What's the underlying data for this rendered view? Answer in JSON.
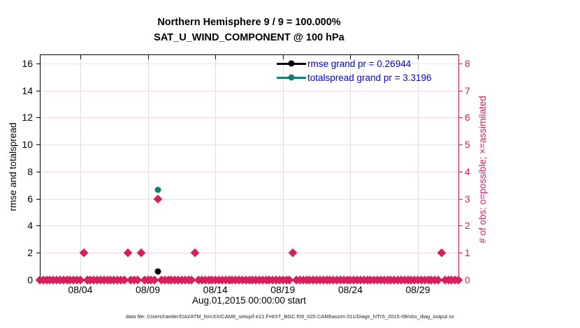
{
  "title_line1": "Northern Hemisphere 9 / 9 = 100.000%",
  "title_line2": "SAT_U_WIND_COMPONENT @ 100 hPa",
  "footer": "data file: /Users/raeder/DAI/ATM_forcXX/CAM6_setup/f.e21.FHIST_BGC.f09_025.CAM6assim.011/Diags_NTrS_2015-08/obs_diag_output.nc",
  "colors": {
    "obs_crimson": "#d81e5b",
    "totalspread_teal": "#0e7e72",
    "rmse_black": "#000000",
    "legend_text_blue": "#0000ee",
    "grid_vertical": "#dcdcdc",
    "grid_horizontal": "#f8d9e3",
    "axis_left": "#000000",
    "axis_right": "#d81e5b"
  },
  "chart_data": {
    "type": "scatter",
    "title": [
      "Northern Hemisphere 9 / 9 = 100.000%",
      "SAT_U_WIND_COMPONENT @ 100 hPa"
    ],
    "xlabel": "Aug.01,2015 00:00:00 start",
    "ylabel_left": "rmse and totalspread",
    "ylabel_right": "# of obs: o=possible; ×=assimilated",
    "x_start_date": "Aug.01,2015 00:00:00",
    "xlim_days_from_start": [
      0,
      31
    ],
    "ylim_left": [
      0,
      16.667
    ],
    "ylim_right": [
      0,
      8.333
    ],
    "x_ticks": [
      {
        "day": 3,
        "label": "08/04"
      },
      {
        "day": 8,
        "label": "08/09"
      },
      {
        "day": 13,
        "label": "08/14"
      },
      {
        "day": 18,
        "label": "08/19"
      },
      {
        "day": 23,
        "label": "08/24"
      },
      {
        "day": 28,
        "label": "08/29"
      }
    ],
    "y_ticks_left": [
      0,
      2,
      4,
      6,
      8,
      10,
      12,
      14,
      16
    ],
    "y_ticks_right": [
      0,
      1,
      2,
      3,
      4,
      5,
      6,
      7,
      8
    ],
    "grid": true,
    "legend_position": "top-right-inside",
    "legend": [
      {
        "series": "rmse",
        "label": "rmse grand pr = 0.26944",
        "color": "#000000"
      },
      {
        "series": "totalspread",
        "label": "totalspread grand pr = 3.3196",
        "color": "#0e7e72"
      }
    ],
    "series": [
      {
        "name": "rmse",
        "marker": "circle",
        "color": "#000000",
        "axis": "left",
        "points": [
          {
            "day": 8.75,
            "value": 0.62
          }
        ]
      },
      {
        "name": "totalspread",
        "marker": "circle",
        "color": "#0e7e72",
        "axis": "left",
        "points": [
          {
            "day": 8.75,
            "value": 6.65
          }
        ]
      },
      {
        "name": "num-obs",
        "marker": "diamond",
        "color": "#d81e5b",
        "axis": "right",
        "bin_step_days": 0.25,
        "bins_range_days": [
          0,
          31
        ],
        "default_count": 0,
        "nonzero_bins": [
          {
            "day": 3.25,
            "count": 1
          },
          {
            "day": 6.5,
            "count": 1
          },
          {
            "day": 7.5,
            "count": 1
          },
          {
            "day": 8.75,
            "count": 3
          },
          {
            "day": 11.5,
            "count": 1
          },
          {
            "day": 18.75,
            "count": 1
          },
          {
            "day": 29.75,
            "count": 1
          }
        ]
      }
    ]
  }
}
